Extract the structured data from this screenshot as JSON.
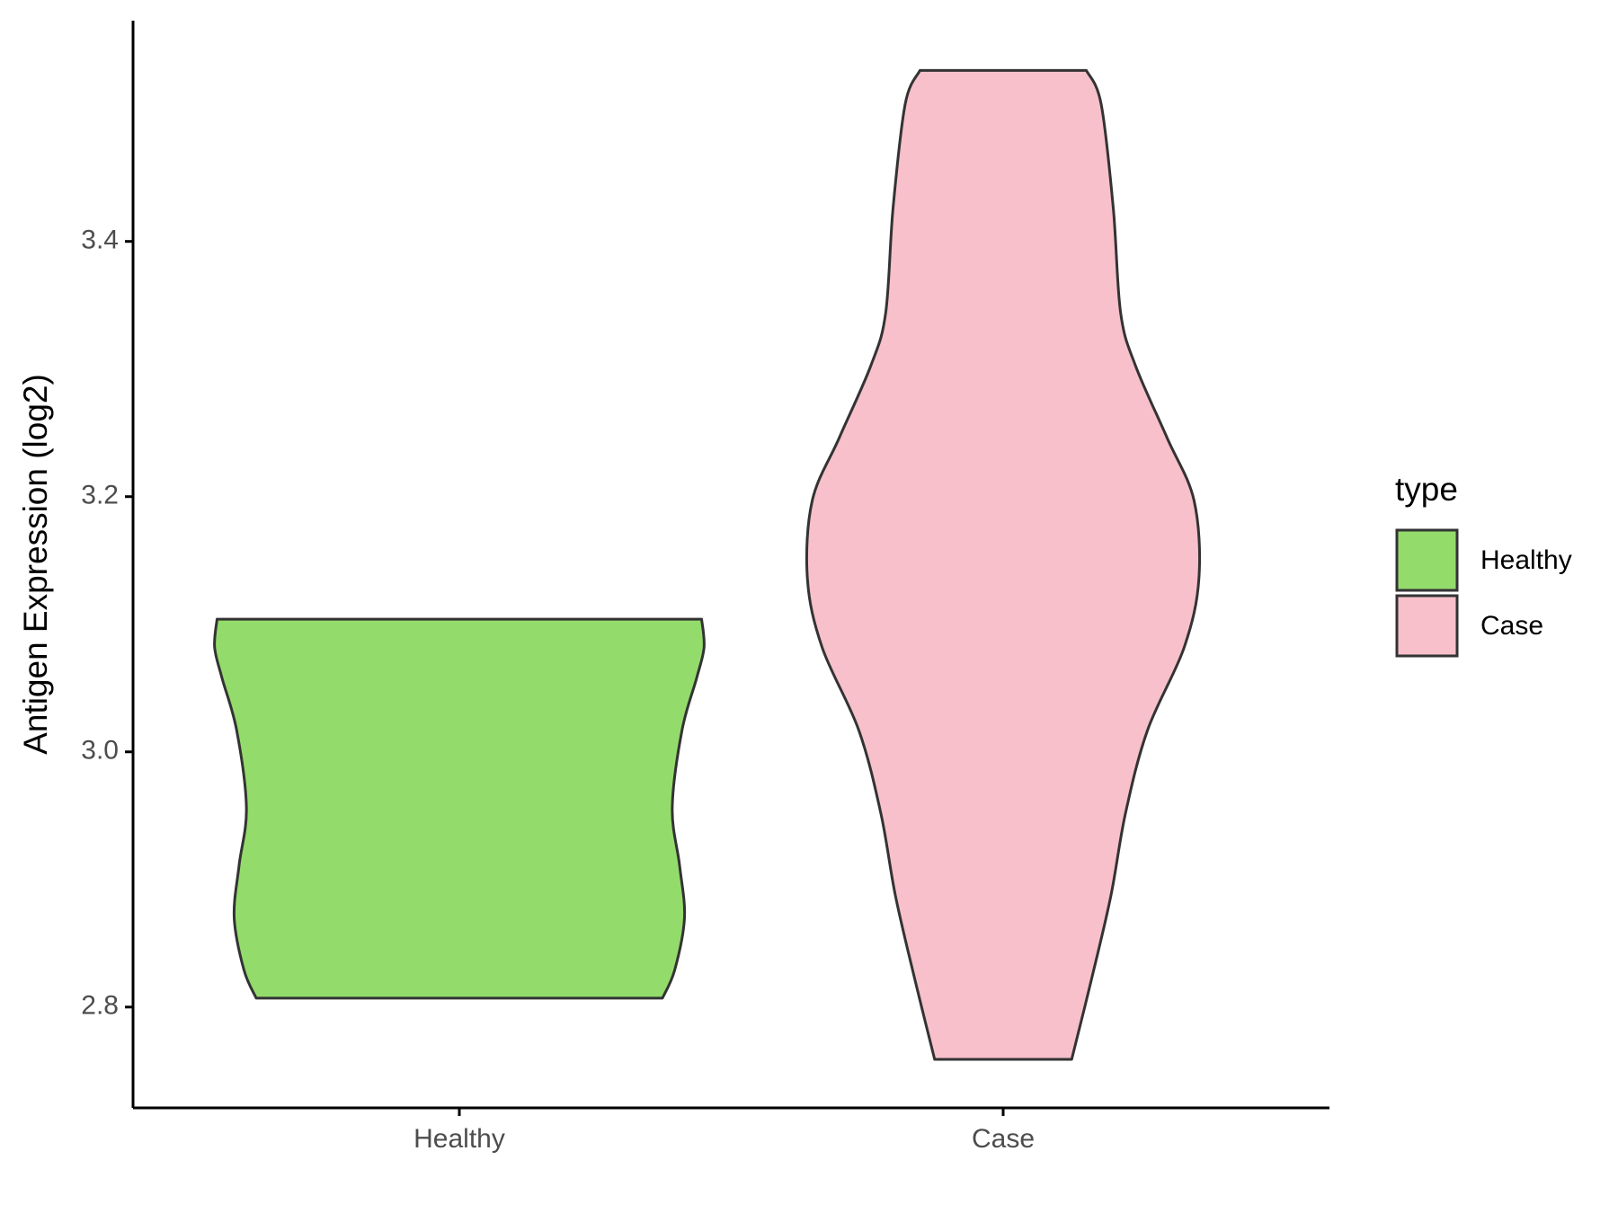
{
  "chart_data": {
    "type": "violin",
    "y_label": "Antigen Expression (log2)",
    "categories": [
      "Healthy",
      "Case"
    ],
    "legend_title": "type",
    "ylim": [
      2.721,
      3.573
    ],
    "yticks": [
      2.8,
      {
        "value": 3,
        "label": "3.0"
      },
      3.2,
      3.4
    ],
    "series": [
      {
        "name": "Healthy",
        "color": "#93dc6b",
        "y": [
          3.104,
          3.082,
          3.058,
          3.017,
          2.956,
          2.911,
          2.87,
          2.829,
          2.807
        ],
        "density": [
          0.99,
          1.0,
          0.97,
          0.91,
          0.87,
          0.9,
          0.92,
          0.88,
          0.83
        ]
      },
      {
        "name": "Case",
        "color": "#f7c0cb",
        "y": [
          3.534,
          3.508,
          3.426,
          3.344,
          3.303,
          3.246,
          3.197,
          3.136,
          3.082,
          3.017,
          2.952,
          2.887,
          2.821,
          2.759
        ],
        "density": [
          0.34,
          0.4,
          0.45,
          0.48,
          0.54,
          0.67,
          0.78,
          0.8,
          0.74,
          0.59,
          0.5,
          0.44,
          0.36,
          0.28
        ]
      }
    ]
  }
}
